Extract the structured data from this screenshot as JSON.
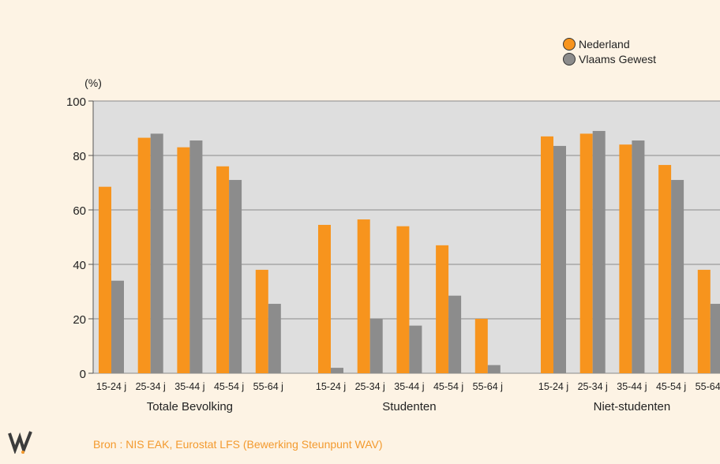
{
  "chart_data": {
    "type": "bar",
    "ylabel": "(%)",
    "ylim": [
      0,
      100
    ],
    "yticks": [
      0,
      20,
      40,
      60,
      80,
      100
    ],
    "grid": true,
    "legend_position": "top-right",
    "group_labels": [
      "Totale Bevolking",
      "Studenten",
      "Niet-studenten"
    ],
    "categories": [
      "15-24 j",
      "25-34 j",
      "35-44 j",
      "45-54 j",
      "55-64 j"
    ],
    "series": [
      {
        "name": "Nederland",
        "color": "#f7941d",
        "values": [
          [
            68.5,
            86.5,
            83,
            76,
            38
          ],
          [
            54.5,
            56.5,
            54,
            47,
            20
          ],
          [
            87,
            88,
            84,
            76.5,
            38
          ]
        ]
      },
      {
        "name": "Vlaams Gewest",
        "color": "#8c8c8c",
        "values": [
          [
            34,
            88,
            85.5,
            71,
            25.5
          ],
          [
            2,
            20,
            17.5,
            28.5,
            3
          ],
          [
            83.5,
            89,
            85.5,
            71,
            25.5
          ]
        ]
      }
    ]
  },
  "source": "Bron : NIS EAK, Eurostat LFS (Bewerking Steunpunt WAV)",
  "colors": {
    "background": "#fdf3e4",
    "plot_area": "#dedede",
    "accent": "#f39a2e"
  }
}
